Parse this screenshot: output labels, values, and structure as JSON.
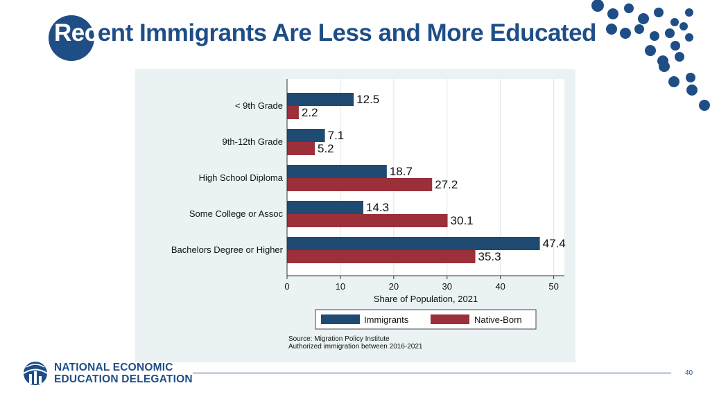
{
  "slide": {
    "title_lead": "Rec",
    "title_rest": "ent Immigrants Are Less and More Educated",
    "page_number": "40"
  },
  "org": {
    "line1": "NATIONAL ECONOMIC",
    "line2": "EDUCATION DELEGATION",
    "logo_icon": "globe-bars-icon"
  },
  "colors": {
    "brand_blue": "#1f4e87",
    "immigrants": "#1f4a72",
    "native_born": "#9b2f3a",
    "panel_bg": "#eaf2f3"
  },
  "chart_data": {
    "type": "bar",
    "orientation": "horizontal",
    "categories": [
      "< 9th Grade",
      "9th-12th Grade",
      "High School Diploma",
      "Some College or Assoc",
      "Bachelors Degree or Higher"
    ],
    "series": [
      {
        "name": "Immigrants",
        "color": "#1f4a72",
        "values": [
          12.5,
          7.1,
          18.7,
          14.3,
          47.4
        ]
      },
      {
        "name": "Native-Born",
        "color": "#9b2f3a",
        "values": [
          2.2,
          5.2,
          27.2,
          30.1,
          35.3
        ]
      }
    ],
    "xlabel": "Share of Population, 2021",
    "xlim": [
      0,
      52
    ],
    "xticks": [
      0,
      10,
      20,
      30,
      40,
      50
    ],
    "grid": true,
    "legend_position": "bottom",
    "source_lines": [
      "Source: Migration Policy Institute",
      "Authorized immigration between 2016-2021"
    ]
  }
}
